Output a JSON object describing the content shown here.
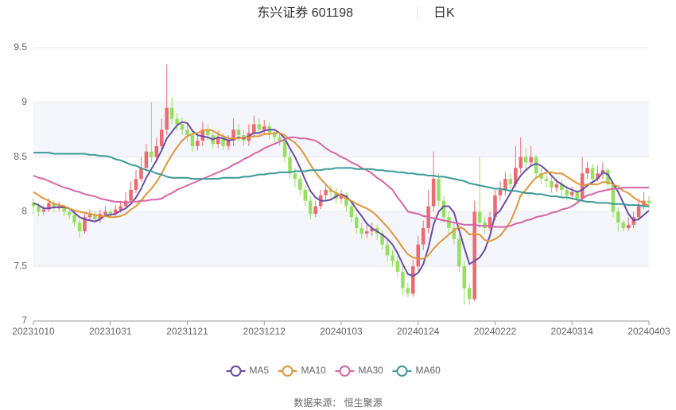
{
  "chart_data": {
    "type": "candlestick",
    "title": "东兴证券 601198",
    "subtitle": "日K",
    "source": "数据来源： 恒生聚源",
    "categories": [
      "20231010",
      null,
      null,
      null,
      null,
      null,
      null,
      null,
      null,
      null,
      null,
      null,
      null,
      null,
      null,
      "20231031",
      null,
      null,
      null,
      null,
      null,
      null,
      null,
      null,
      null,
      null,
      null,
      null,
      null,
      null,
      "20231121",
      null,
      null,
      null,
      null,
      null,
      null,
      null,
      null,
      null,
      null,
      null,
      null,
      null,
      null,
      "20231212",
      null,
      null,
      null,
      null,
      null,
      null,
      null,
      null,
      null,
      null,
      null,
      null,
      null,
      null,
      "20240103",
      null,
      null,
      null,
      null,
      null,
      null,
      null,
      null,
      null,
      null,
      null,
      null,
      null,
      null,
      "20240124",
      null,
      null,
      null,
      null,
      null,
      null,
      null,
      null,
      null,
      null,
      null,
      null,
      null,
      null,
      "20240222",
      null,
      null,
      null,
      null,
      null,
      null,
      null,
      null,
      null,
      null,
      null,
      null,
      null,
      null,
      "20240314",
      null,
      null,
      null,
      null,
      null,
      null,
      null,
      null,
      null,
      null,
      null,
      null,
      null,
      null,
      "20240403"
    ],
    "open": [
      8.08,
      8.05,
      8.0,
      8.02,
      8.08,
      8.03,
      8.05,
      8.0,
      7.97,
      7.9,
      7.82,
      7.95,
      7.97,
      7.93,
      7.98,
      8.0,
      7.98,
      8.02,
      8.05,
      8.1,
      8.2,
      8.3,
      8.4,
      8.55,
      8.5,
      8.6,
      8.75,
      8.95,
      8.85,
      8.8,
      8.75,
      8.7,
      8.6,
      8.65,
      8.75,
      8.7,
      8.62,
      8.68,
      8.6,
      8.65,
      8.75,
      8.7,
      8.65,
      8.72,
      8.8,
      8.75,
      8.78,
      8.72,
      8.68,
      8.65,
      8.5,
      8.35,
      8.3,
      8.2,
      8.1,
      7.98,
      8.05,
      8.15,
      8.2,
      8.18,
      8.12,
      8.15,
      8.05,
      7.95,
      7.85,
      7.8,
      7.82,
      7.85,
      7.8,
      7.7,
      7.6,
      7.55,
      7.45,
      7.3,
      7.25,
      7.5,
      7.7,
      7.85,
      8.05,
      8.3,
      8.1,
      7.95,
      7.85,
      7.75,
      7.5,
      7.3,
      7.2,
      8.0,
      7.9,
      7.85,
      7.95,
      8.15,
      8.2,
      8.3,
      8.25,
      8.4,
      8.5,
      8.45,
      8.5,
      8.35,
      8.3,
      8.28,
      8.22,
      8.25,
      8.2,
      8.15,
      8.18,
      8.12,
      8.35,
      8.4,
      8.3,
      8.35,
      8.38,
      8.25,
      8.0,
      7.9,
      7.85,
      7.88,
      7.95,
      8.05,
      8.1
    ],
    "close": [
      8.05,
      8.0,
      8.02,
      8.08,
      8.03,
      8.05,
      8.0,
      7.97,
      7.9,
      7.82,
      7.95,
      7.97,
      7.93,
      7.98,
      8.0,
      7.98,
      8.02,
      8.05,
      8.1,
      8.2,
      8.3,
      8.4,
      8.55,
      8.5,
      8.6,
      8.75,
      8.95,
      8.85,
      8.8,
      8.75,
      8.7,
      8.6,
      8.65,
      8.75,
      8.7,
      8.62,
      8.68,
      8.6,
      8.65,
      8.75,
      8.7,
      8.65,
      8.72,
      8.8,
      8.75,
      8.78,
      8.72,
      8.68,
      8.65,
      8.5,
      8.35,
      8.3,
      8.2,
      8.1,
      7.98,
      8.05,
      8.15,
      8.2,
      8.18,
      8.12,
      8.15,
      8.05,
      7.95,
      7.85,
      7.8,
      7.82,
      7.85,
      7.8,
      7.7,
      7.6,
      7.55,
      7.45,
      7.3,
      7.25,
      7.5,
      7.7,
      7.85,
      8.05,
      8.3,
      8.1,
      7.95,
      7.85,
      7.75,
      7.5,
      7.3,
      7.2,
      8.0,
      7.9,
      7.85,
      7.95,
      8.15,
      8.2,
      8.3,
      8.25,
      8.4,
      8.5,
      8.45,
      8.5,
      8.35,
      8.3,
      8.28,
      8.22,
      8.25,
      8.2,
      8.15,
      8.18,
      8.12,
      8.35,
      8.4,
      8.3,
      8.35,
      8.38,
      8.25,
      8.0,
      7.9,
      7.85,
      7.88,
      7.95,
      8.05,
      8.1,
      8.08
    ],
    "high": [
      8.12,
      8.08,
      8.06,
      8.12,
      8.1,
      8.09,
      8.07,
      8.03,
      8.0,
      7.93,
      7.98,
      8.02,
      8.0,
      8.02,
      8.05,
      8.03,
      8.06,
      8.1,
      8.18,
      8.28,
      8.38,
      8.5,
      8.62,
      9.0,
      8.68,
      8.85,
      9.35,
      9.05,
      8.9,
      8.86,
      8.8,
      8.74,
      8.72,
      8.82,
      8.8,
      8.74,
      8.74,
      8.72,
      8.7,
      8.85,
      8.8,
      8.75,
      8.8,
      8.88,
      8.85,
      8.84,
      8.82,
      8.76,
      8.72,
      8.68,
      8.55,
      8.4,
      8.33,
      8.24,
      8.14,
      8.1,
      8.2,
      8.26,
      8.24,
      8.22,
      8.2,
      8.18,
      8.08,
      7.98,
      7.9,
      7.88,
      7.9,
      7.88,
      7.83,
      7.74,
      7.65,
      7.6,
      7.5,
      7.35,
      7.56,
      7.78,
      7.92,
      8.2,
      8.55,
      8.35,
      8.15,
      8.0,
      7.9,
      7.8,
      7.55,
      7.35,
      8.1,
      8.5,
      7.95,
      8.0,
      8.2,
      8.28,
      8.36,
      8.35,
      8.6,
      8.68,
      8.58,
      8.6,
      8.52,
      8.4,
      8.35,
      8.32,
      8.3,
      8.3,
      8.24,
      8.23,
      8.2,
      8.5,
      8.46,
      8.44,
      8.42,
      8.45,
      8.4,
      8.28,
      8.04,
      7.92,
      7.95,
      8.0,
      8.12,
      8.18,
      8.14
    ],
    "low": [
      7.98,
      7.96,
      7.97,
      8.0,
      8.0,
      8.0,
      7.96,
      7.93,
      7.86,
      7.76,
      7.8,
      7.92,
      7.9,
      7.9,
      7.95,
      7.94,
      7.95,
      7.99,
      8.03,
      8.07,
      8.17,
      8.27,
      8.37,
      8.45,
      8.45,
      8.55,
      8.7,
      8.8,
      8.74,
      8.7,
      8.64,
      8.55,
      8.56,
      8.6,
      8.65,
      8.58,
      8.58,
      8.56,
      8.56,
      8.6,
      8.64,
      8.6,
      8.6,
      8.68,
      8.7,
      8.7,
      8.66,
      8.63,
      8.6,
      8.45,
      8.3,
      8.22,
      8.15,
      8.05,
      7.93,
      7.95,
      8.02,
      8.1,
      8.12,
      8.07,
      8.08,
      8.0,
      7.9,
      7.8,
      7.75,
      7.76,
      7.78,
      7.74,
      7.65,
      7.55,
      7.5,
      7.4,
      7.24,
      7.22,
      7.22,
      7.46,
      7.65,
      7.8,
      8.0,
      8.05,
      7.9,
      7.8,
      7.7,
      7.45,
      7.15,
      7.15,
      7.18,
      7.85,
      7.8,
      7.82,
      7.92,
      8.1,
      8.15,
      8.2,
      8.22,
      8.35,
      8.38,
      8.42,
      8.3,
      8.25,
      8.22,
      8.17,
      8.18,
      8.14,
      8.1,
      8.12,
      8.08,
      8.1,
      8.3,
      8.25,
      8.28,
      8.3,
      8.2,
      7.95,
      7.82,
      7.82,
      7.83,
      7.85,
      7.92,
      8.02,
      8.03
    ],
    "up_color": "#ee6a70",
    "down_color": "#96e05f",
    "series": [
      {
        "name": "MA5",
        "color": "#6a4ca8",
        "values": [
          8.08,
          8.06,
          8.03,
          8.03,
          8.04,
          8.04,
          8.04,
          8.03,
          7.99,
          7.95,
          7.93,
          7.92,
          7.91,
          7.93,
          7.97,
          7.97,
          7.98,
          8.01,
          8.03,
          8.07,
          8.13,
          8.21,
          8.31,
          8.39,
          8.47,
          8.56,
          8.67,
          8.73,
          8.79,
          8.82,
          8.81,
          8.74,
          8.7,
          8.69,
          8.68,
          8.66,
          8.68,
          8.67,
          8.65,
          8.66,
          8.68,
          8.67,
          8.69,
          8.72,
          8.72,
          8.74,
          8.75,
          8.75,
          8.72,
          8.67,
          8.58,
          8.5,
          8.4,
          8.29,
          8.19,
          8.13,
          8.1,
          8.1,
          8.11,
          8.14,
          8.16,
          8.14,
          8.09,
          8.02,
          7.96,
          7.89,
          7.85,
          7.82,
          7.79,
          7.75,
          7.7,
          7.62,
          7.52,
          7.43,
          7.41,
          7.44,
          7.52,
          7.67,
          7.88,
          8.0,
          8.05,
          8.05,
          7.99,
          7.83,
          7.67,
          7.52,
          7.55,
          7.58,
          7.65,
          7.78,
          7.97,
          8.01,
          8.09,
          8.17,
          8.26,
          8.33,
          8.38,
          8.42,
          8.44,
          8.42,
          8.38,
          8.33,
          8.28,
          8.25,
          8.22,
          8.2,
          8.18,
          8.2,
          8.24,
          8.27,
          8.3,
          8.36,
          8.34,
          8.26,
          8.18,
          8.08,
          7.98,
          7.92,
          7.93,
          7.97,
          8.01
        ]
      },
      {
        "name": "MA10",
        "color": "#e0963a",
        "values": [
          8.18,
          8.15,
          8.12,
          8.1,
          8.07,
          8.06,
          8.05,
          8.03,
          8.01,
          8.0,
          7.99,
          7.98,
          7.97,
          7.96,
          7.96,
          7.95,
          7.95,
          7.96,
          7.98,
          8.02,
          8.05,
          8.1,
          8.16,
          8.21,
          8.27,
          8.35,
          8.44,
          8.52,
          8.59,
          8.65,
          8.69,
          8.71,
          8.72,
          8.74,
          8.75,
          8.74,
          8.71,
          8.69,
          8.67,
          8.67,
          8.67,
          8.68,
          8.68,
          8.69,
          8.69,
          8.71,
          8.71,
          8.72,
          8.72,
          8.7,
          8.66,
          8.63,
          8.58,
          8.51,
          8.43,
          8.36,
          8.3,
          8.25,
          8.2,
          8.17,
          8.15,
          8.12,
          8.1,
          8.07,
          8.05,
          8.03,
          8.0,
          7.96,
          7.91,
          7.86,
          7.8,
          7.74,
          7.67,
          7.61,
          7.58,
          7.57,
          7.57,
          7.6,
          7.66,
          7.71,
          7.75,
          7.79,
          7.83,
          7.86,
          7.84,
          7.79,
          7.8,
          7.79,
          7.74,
          7.73,
          7.75,
          7.78,
          7.84,
          7.91,
          8.02,
          8.15,
          8.2,
          8.26,
          8.31,
          8.34,
          8.36,
          8.36,
          8.35,
          8.35,
          8.32,
          8.29,
          8.26,
          8.24,
          8.25,
          8.25,
          8.25,
          8.27,
          8.27,
          8.25,
          8.23,
          8.19,
          8.17,
          8.13,
          8.1,
          8.08,
          8.05
        ]
      },
      {
        "name": "MA30",
        "color": "#d865a8",
        "values": [
          8.33,
          8.31,
          8.3,
          8.28,
          8.26,
          8.24,
          8.22,
          8.21,
          8.19,
          8.18,
          8.16,
          8.15,
          8.14,
          8.12,
          8.11,
          8.1,
          8.09,
          8.09,
          8.08,
          8.09,
          8.09,
          8.1,
          8.1,
          8.11,
          8.11,
          8.12,
          8.15,
          8.17,
          8.2,
          8.22,
          8.24,
          8.26,
          8.28,
          8.3,
          8.32,
          8.34,
          8.36,
          8.38,
          8.4,
          8.43,
          8.45,
          8.48,
          8.5,
          8.53,
          8.55,
          8.58,
          8.6,
          8.62,
          8.64,
          8.66,
          8.68,
          8.68,
          8.67,
          8.67,
          8.66,
          8.65,
          8.62,
          8.58,
          8.55,
          8.53,
          8.5,
          8.48,
          8.45,
          8.43,
          8.4,
          8.38,
          8.35,
          8.31,
          8.28,
          8.24,
          8.2,
          8.13,
          8.07,
          8.0,
          7.99,
          7.98,
          7.96,
          7.95,
          7.94,
          7.93,
          7.92,
          7.91,
          7.9,
          7.89,
          7.88,
          7.88,
          7.88,
          7.87,
          7.87,
          7.87,
          7.86,
          7.86,
          7.86,
          7.87,
          7.89,
          7.9,
          7.92,
          7.93,
          7.95,
          7.96,
          7.97,
          7.99,
          8.0,
          8.02,
          8.03,
          8.05,
          8.08,
          8.12,
          8.15,
          8.16,
          8.18,
          8.19,
          8.2,
          8.21,
          8.21,
          8.22,
          8.22,
          8.22,
          8.22,
          8.22,
          8.22
        ]
      },
      {
        "name": "MA60",
        "color": "#3c9a9a",
        "values": [
          8.54,
          8.54,
          8.54,
          8.54,
          8.53,
          8.53,
          8.53,
          8.53,
          8.53,
          8.53,
          8.53,
          8.52,
          8.52,
          8.51,
          8.51,
          8.5,
          8.48,
          8.47,
          8.45,
          8.43,
          8.42,
          8.4,
          8.38,
          8.37,
          8.35,
          8.34,
          8.32,
          8.31,
          8.31,
          8.31,
          8.31,
          8.3,
          8.3,
          8.3,
          8.3,
          8.3,
          8.3,
          8.31,
          8.31,
          8.31,
          8.31,
          8.32,
          8.32,
          8.33,
          8.34,
          8.34,
          8.35,
          8.35,
          8.36,
          8.36,
          8.36,
          8.37,
          8.37,
          8.37,
          8.38,
          8.38,
          8.38,
          8.39,
          8.39,
          8.4,
          8.4,
          8.4,
          8.4,
          8.39,
          8.39,
          8.39,
          8.39,
          8.38,
          8.38,
          8.37,
          8.37,
          8.36,
          8.36,
          8.35,
          8.35,
          8.34,
          8.34,
          8.33,
          8.33,
          8.32,
          8.32,
          8.31,
          8.3,
          8.29,
          8.28,
          8.26,
          8.25,
          8.24,
          8.23,
          8.22,
          8.21,
          8.21,
          8.2,
          8.19,
          8.19,
          8.18,
          8.17,
          8.17,
          8.16,
          8.16,
          8.15,
          8.14,
          8.14,
          8.13,
          8.13,
          8.12,
          8.11,
          8.1,
          8.09,
          8.09,
          8.08,
          8.08,
          8.08,
          8.07,
          8.07,
          8.07,
          8.06,
          8.06,
          8.06,
          8.05,
          8.05
        ]
      }
    ],
    "ylim": [
      7,
      9.5
    ],
    "yticks": [
      7,
      7.5,
      8,
      8.5,
      9,
      9.5
    ],
    "grid": true
  }
}
